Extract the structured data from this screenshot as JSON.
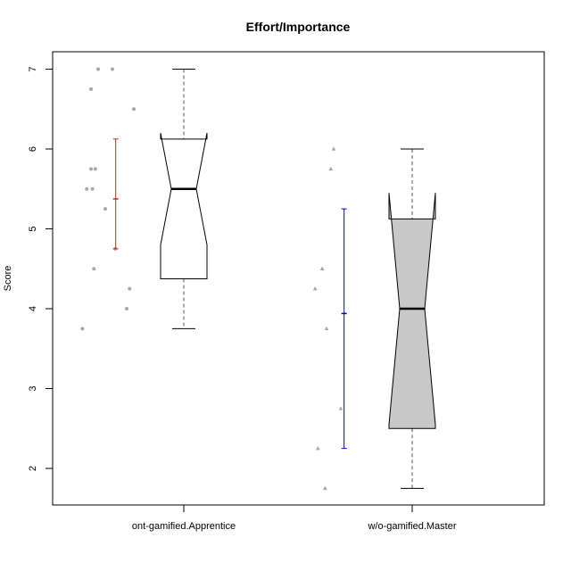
{
  "chart_data": {
    "type": "box",
    "title": "Effort/Importance",
    "xlabel": "",
    "ylabel": "Score",
    "ylim": [
      1.6,
      7.1
    ],
    "yticks": [
      2,
      3,
      4,
      5,
      6,
      7
    ],
    "categories": [
      "ont-gamified.Apprentice",
      "w/o-gamified.Master"
    ],
    "boxes": [
      {
        "name": "ont-gamified.Apprentice",
        "min": 3.75,
        "q1": 4.375,
        "median": 5.5,
        "q3": 6.125,
        "max": 7.0,
        "notch_low": 4.8,
        "notch_high": 6.2,
        "fill": "#ffffff",
        "points": [
          7.0,
          7.0,
          6.75,
          6.5,
          5.75,
          5.75,
          5.5,
          5.5,
          5.25,
          4.75,
          4.5,
          4.25,
          4.0,
          3.75
        ],
        "point_offsets": [
          -0.6,
          -0.5,
          -0.65,
          -0.35,
          -0.65,
          -0.62,
          -0.68,
          -0.64,
          -0.55,
          -0.48,
          -0.63,
          -0.38,
          -0.4,
          -0.71
        ],
        "mean": 5.375,
        "err_low": 4.75,
        "err_high": 6.125,
        "err_color": "#e31a1c",
        "err_offset": -0.53
      },
      {
        "name": "w/o-gamified.Master",
        "min": 1.75,
        "q1": 2.5,
        "median": 4.0,
        "q3": 5.125,
        "max": 6.0,
        "notch_low": 2.55,
        "notch_high": 5.45,
        "fill": "#c8c8c8",
        "points": [
          6.0,
          5.75,
          4.5,
          4.25,
          3.75,
          2.75,
          2.25,
          1.75
        ],
        "point_offsets": [
          -0.55,
          -0.57,
          -0.63,
          -0.68,
          -0.6,
          -0.5,
          -0.66,
          -0.61
        ],
        "mean": 3.94,
        "err_low": 2.25,
        "err_high": 5.25,
        "err_color": "#0000cc",
        "err_offset": -0.53
      }
    ],
    "point_color": "#a8a8a8",
    "grid": false,
    "legend": "none"
  }
}
